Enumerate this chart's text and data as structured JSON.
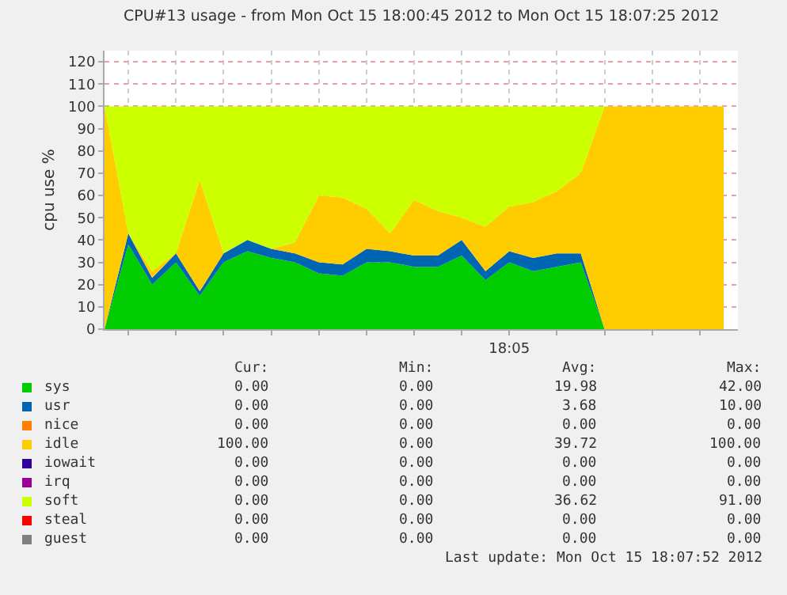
{
  "chart_data": {
    "type": "area",
    "stacked": true,
    "title": "CPU#13 usage - from Mon Oct 15 18:00:45 2012 to Mon Oct 15 18:07:25 2012",
    "ylabel": "cpu use %",
    "categories": [
      null,
      null,
      null,
      null,
      null,
      null,
      null,
      null,
      null,
      null,
      null,
      null,
      null,
      null,
      null,
      null,
      null,
      "18:05",
      null,
      null,
      null,
      null,
      null,
      null,
      null,
      null,
      null
    ],
    "series": [
      {
        "name": "sys",
        "color": "#00cc00",
        "values": [
          0,
          38,
          20,
          30,
          15,
          30,
          35,
          32,
          30,
          25,
          24,
          30,
          30,
          28,
          28,
          33,
          22,
          30,
          26,
          28,
          30,
          0,
          0,
          0,
          0,
          0,
          0
        ]
      },
      {
        "name": "usr",
        "color": "#0066b3",
        "values": [
          0,
          5,
          3,
          4,
          2,
          4,
          5,
          4,
          4,
          5,
          5,
          6,
          5,
          5,
          5,
          7,
          4,
          5,
          6,
          6,
          4,
          0,
          0,
          0,
          0,
          0,
          0
        ]
      },
      {
        "name": "nice",
        "color": "#ff8000",
        "values": [
          null,
          null,
          null,
          null,
          null,
          null,
          null,
          null,
          null,
          null,
          null,
          null,
          null,
          null,
          null,
          null,
          null,
          null,
          null,
          null,
          null,
          null,
          null,
          null,
          null,
          null,
          null
        ]
      },
      {
        "name": "idle",
        "color": "#ffcc00",
        "values": [
          100,
          0,
          3,
          0,
          50,
          0,
          0,
          0,
          5,
          30,
          30,
          18,
          8,
          25,
          20,
          10,
          20,
          20,
          25,
          28,
          36,
          100,
          100,
          100,
          100,
          100,
          100
        ]
      },
      {
        "name": "iowait",
        "color": "#330099",
        "values": [
          null,
          null,
          null,
          null,
          null,
          null,
          null,
          null,
          null,
          null,
          null,
          null,
          null,
          null,
          null,
          null,
          null,
          null,
          null,
          null,
          null,
          null,
          null,
          null,
          null,
          null,
          null
        ]
      },
      {
        "name": "irq",
        "color": "#990099",
        "values": [
          null,
          null,
          null,
          null,
          null,
          null,
          null,
          null,
          null,
          null,
          null,
          null,
          null,
          null,
          null,
          null,
          null,
          null,
          null,
          null,
          null,
          null,
          null,
          null,
          null,
          null,
          null
        ]
      },
      {
        "name": "soft",
        "color": "#ccff00",
        "values": [
          0,
          57,
          74,
          66,
          33,
          66,
          60,
          64,
          61,
          40,
          41,
          46,
          57,
          42,
          47,
          50,
          54,
          45,
          43,
          38,
          30,
          0,
          0,
          0,
          0,
          0,
          0
        ]
      },
      {
        "name": "steal",
        "color": "#ff0000",
        "values": [
          null,
          null,
          null,
          null,
          null,
          null,
          null,
          null,
          null,
          null,
          null,
          null,
          null,
          null,
          null,
          null,
          null,
          null,
          null,
          null,
          null,
          null,
          null,
          null,
          null,
          null,
          null
        ]
      },
      {
        "name": "guest",
        "color": "#808080",
        "values": [
          null,
          null,
          null,
          null,
          null,
          null,
          null,
          null,
          null,
          null,
          null,
          null,
          null,
          null,
          null,
          null,
          null,
          null,
          null,
          null,
          null,
          null,
          null,
          null,
          null,
          null,
          null
        ]
      }
    ],
    "ylim": [
      0,
      125
    ],
    "yticks": [
      0,
      10,
      20,
      30,
      40,
      50,
      60,
      70,
      80,
      90,
      100,
      110,
      120
    ],
    "grid": true,
    "legend": "bottom",
    "annotations": [
      "Cur:",
      "Min:",
      "Avg:",
      "Max:",
      "0.00",
      "0.00",
      "19.98",
      "42.00",
      "0.00",
      "0.00",
      "3.68",
      "10.00",
      "0.00",
      "0.00",
      "0.00",
      "0.00",
      "100.00",
      "0.00",
      "39.72",
      "100.00",
      "0.00",
      "0.00",
      "0.00",
      "0.00",
      "0.00",
      "0.00",
      "0.00",
      "0.00",
      "0.00",
      "0.00",
      "36.62",
      "91.00",
      "0.00",
      "0.00",
      "0.00",
      "0.00",
      "0.00",
      "0.00",
      "0.00",
      "0.00",
      "Last update: Mon Oct 15 18:07:52 2012"
    ]
  }
}
